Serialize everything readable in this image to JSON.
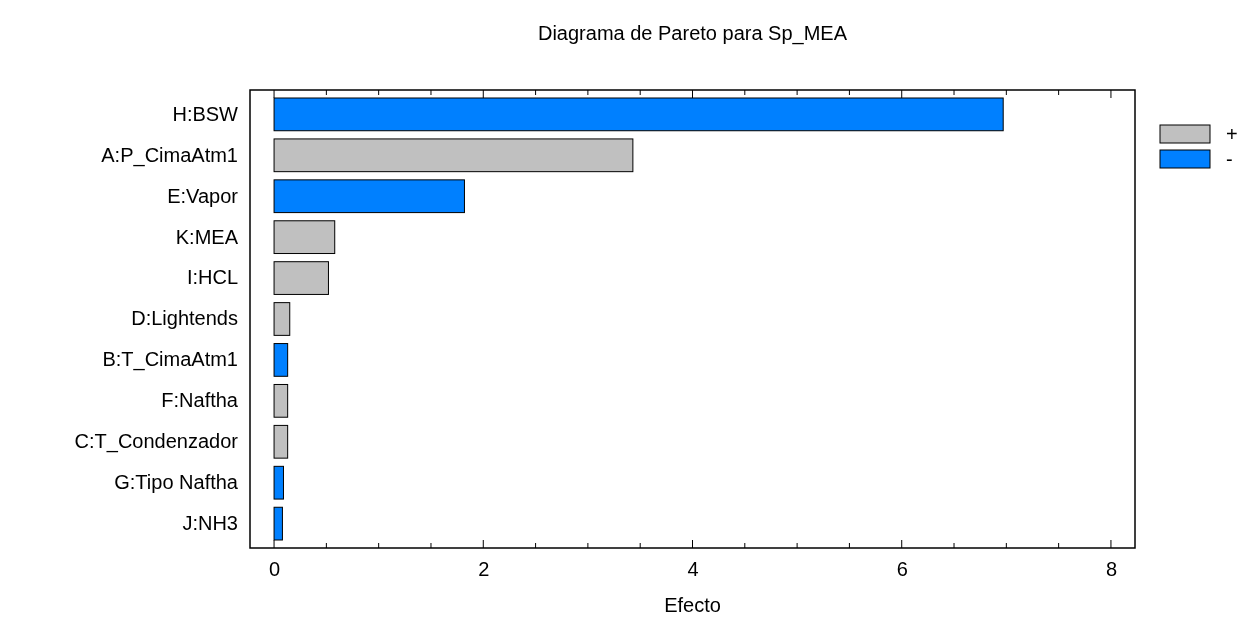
{
  "chart_data": {
    "type": "bar",
    "orientation": "horizontal",
    "title": "Diagrama de Pareto para Sp_MEA",
    "xlabel": "Efecto",
    "categories": [
      "H:BSW",
      "A:P_CimaAtm1",
      "E:Vapor",
      "K:MEA",
      "I:HCL",
      "D:Lightends",
      "B:T_CimaAtm1",
      "F:Naftha",
      "C:T_Condenzador",
      "G:Tipo Naftha",
      "J:NH3"
    ],
    "series": [
      {
        "name": "+",
        "color": "#c0c0c0",
        "values": [
          null,
          3.43,
          null,
          0.58,
          0.52,
          0.15,
          null,
          0.13,
          0.13,
          null,
          null
        ]
      },
      {
        "name": "-",
        "color": "#0080ff",
        "values": [
          6.97,
          null,
          1.82,
          null,
          null,
          null,
          0.13,
          null,
          null,
          0.09,
          0.08
        ]
      }
    ],
    "xlim": [
      -0.23,
      8.23
    ],
    "xticks": [
      0,
      {
        "value": 0.5,
        "label": null
      },
      {
        "value": 1,
        "label": null
      },
      {
        "value": 1.5,
        "label": null
      },
      2,
      {
        "value": 2.5,
        "label": null
      },
      {
        "value": 3,
        "label": null
      },
      {
        "value": 3.5,
        "label": null
      },
      4,
      {
        "value": 4.5,
        "label": null
      },
      {
        "value": 5,
        "label": null
      },
      {
        "value": 5.5,
        "label": null
      },
      6,
      {
        "value": 6.5,
        "label": null
      },
      {
        "value": 7,
        "label": null
      },
      {
        "value": 7.5,
        "label": null
      },
      8
    ],
    "grid": false,
    "legend": "right"
  }
}
